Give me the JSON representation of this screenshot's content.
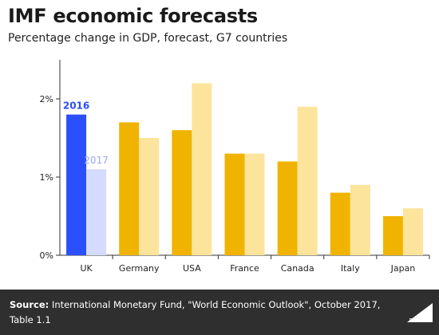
{
  "header": {
    "title": "IMF economic forecasts",
    "subtitle": "Percentage change in GDP, forecast, G7 countries"
  },
  "chart_data": {
    "type": "bar",
    "categories": [
      "UK",
      "Germany",
      "USA",
      "France",
      "Canada",
      "Italy",
      "Japan"
    ],
    "series": [
      {
        "name": "2016",
        "values": [
          1.8,
          1.7,
          1.6,
          1.3,
          1.2,
          0.8,
          0.5
        ]
      },
      {
        "name": "2017",
        "values": [
          1.1,
          1.5,
          2.2,
          1.3,
          1.9,
          0.9,
          0.6
        ]
      }
    ],
    "yticks": [
      "0%",
      "1%",
      "2%"
    ],
    "ylim": [
      0,
      2.5
    ],
    "colors": {
      "s2016": "#f0b400",
      "s2017": "#fde49c",
      "uk2016": "#2b4ffa",
      "uk2017": "#d5dbfe"
    },
    "grid": false,
    "legend": "inline labels on UK bars"
  },
  "footer": {
    "source_label": "Source:",
    "source_text": "International Monetary Fund, \"World Economic Outlook\", October 2017, Table 1.1",
    "logo_text": "Full Fact"
  }
}
